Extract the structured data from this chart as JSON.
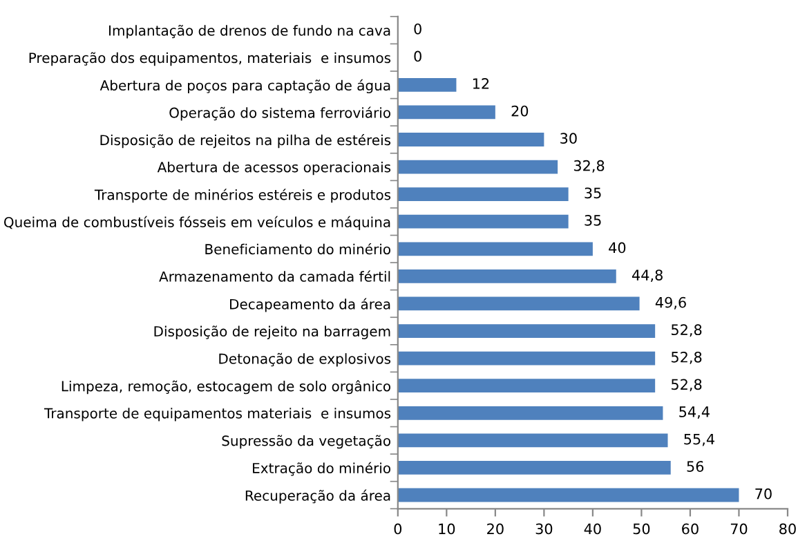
{
  "chart_data": {
    "type": "bar",
    "orientation": "horizontal",
    "categories": [
      "Implantação de drenos de fundo na cava",
      "Preparação dos equipamentos, materiais  e insumos",
      "Abertura de poços para captação de água",
      "Operação do sistema ferroviário",
      "Disposição de rejeitos na pilha de estéreis",
      "Abertura de acessos operacionais",
      "Transporte de minérios estéreis e produtos",
      "Queima de combustíveis fósseis em veículos e máquina",
      "Beneficiamento do minério",
      "Armazenamento da camada fértil",
      "Decapeamento da área",
      "Disposição de rejeito na barragem",
      "Detonação de explosivos",
      "Limpeza, remoção, estocagem de solo orgânico",
      "Transporte de equipamentos materiais  e insumos",
      "Supressão da vegetação",
      "Extração do minério",
      "Recuperação da área"
    ],
    "values": [
      0,
      0,
      12,
      20,
      30,
      32.8,
      35,
      35,
      40,
      44.8,
      49.6,
      52.8,
      52.8,
      52.8,
      54.4,
      55.4,
      56,
      70
    ],
    "value_labels": [
      "0",
      "0",
      "12",
      "20",
      "30",
      "32,8",
      "35",
      "35",
      "40",
      "44,8",
      "49,6",
      "52,8",
      "52,8",
      "52,8",
      "54,4",
      "55,4",
      "56",
      "70"
    ],
    "color": "#4f81bd",
    "xlim": [
      0,
      80
    ],
    "xticks": [
      0,
      10,
      20,
      30,
      40,
      50,
      60,
      70,
      80
    ],
    "grid": false,
    "legend": false
  }
}
